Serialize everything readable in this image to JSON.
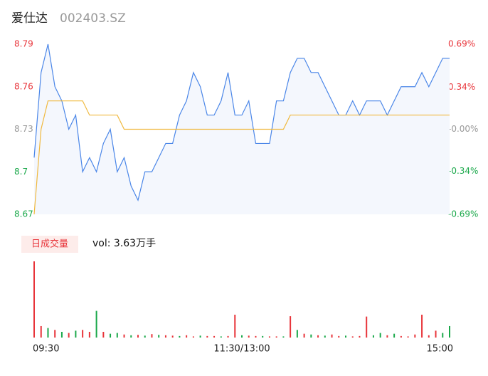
{
  "chart_data": {
    "type": "intraday",
    "title": "爱仕达",
    "subtitle": "002403.SZ",
    "volume_label": "日成交量",
    "volume_text": "vol: 3.63万手",
    "xlim": [
      0,
      240
    ],
    "xticks": [
      {
        "value": 0,
        "label": "09:30"
      },
      {
        "value": 120,
        "label": "11:30/13:00"
      },
      {
        "value": 240,
        "label": "15:00"
      }
    ],
    "ylim": [
      8.67,
      8.79
    ],
    "yticks": [
      8.67,
      8.7,
      8.73,
      8.76,
      8.79
    ],
    "y2lim": [
      -0.69,
      0.69
    ],
    "y2ticks": [
      {
        "value": -0.69,
        "label": "-0.69%"
      },
      {
        "value": -0.34,
        "label": "-0.34%"
      },
      {
        "value": 0,
        "label": "-0.00%"
      },
      {
        "value": 0.34,
        "label": "0.34%"
      },
      {
        "value": 0.69,
        "label": "0.69%"
      }
    ],
    "x": [
      0,
      4,
      8,
      12,
      16,
      20,
      24,
      28,
      32,
      36,
      40,
      44,
      48,
      52,
      56,
      60,
      64,
      68,
      72,
      76,
      80,
      84,
      88,
      92,
      96,
      100,
      104,
      108,
      112,
      116,
      120,
      124,
      128,
      132,
      136,
      140,
      144,
      148,
      152,
      156,
      160,
      164,
      168,
      172,
      176,
      180,
      184,
      188,
      192,
      196,
      200,
      204,
      208,
      212,
      216,
      220,
      224,
      228,
      232,
      236,
      240
    ],
    "series": [
      {
        "color": "#4a86e8",
        "values": [
          8.71,
          8.77,
          8.79,
          8.76,
          8.75,
          8.73,
          8.74,
          8.7,
          8.71,
          8.7,
          8.72,
          8.73,
          8.7,
          8.71,
          8.69,
          8.68,
          8.7,
          8.7,
          8.71,
          8.72,
          8.72,
          8.74,
          8.75,
          8.77,
          8.76,
          8.74,
          8.74,
          8.75,
          8.77,
          8.74,
          8.74,
          8.75,
          8.72,
          8.72,
          8.72,
          8.75,
          8.75,
          8.77,
          8.78,
          8.78,
          8.77,
          8.77,
          8.76,
          8.75,
          8.74,
          8.74,
          8.75,
          8.74,
          8.75,
          8.75,
          8.75,
          8.74,
          8.75,
          8.76,
          8.76,
          8.76,
          8.77,
          8.76,
          8.77,
          8.78,
          8.78
        ]
      },
      {
        "color": "#f0b93e",
        "values": [
          8.67,
          8.73,
          8.75,
          8.75,
          8.75,
          8.75,
          8.75,
          8.75,
          8.74,
          8.74,
          8.74,
          8.74,
          8.74,
          8.73,
          8.73,
          8.73,
          8.73,
          8.73,
          8.73,
          8.73,
          8.73,
          8.73,
          8.73,
          8.73,
          8.73,
          8.73,
          8.73,
          8.73,
          8.73,
          8.73,
          8.73,
          8.73,
          8.73,
          8.73,
          8.73,
          8.73,
          8.73,
          8.74,
          8.74,
          8.74,
          8.74,
          8.74,
          8.74,
          8.74,
          8.74,
          8.74,
          8.74,
          8.74,
          8.74,
          8.74,
          8.74,
          8.74,
          8.74,
          8.74,
          8.74,
          8.74,
          8.74,
          8.74,
          8.74,
          8.74,
          8.74
        ]
      }
    ],
    "volume_lim": [
      0,
      2000
    ],
    "volume": [
      2000,
      300,
      250,
      200,
      150,
      120,
      180,
      200,
      150,
      700,
      150,
      100,
      120,
      80,
      60,
      70,
      50,
      90,
      70,
      60,
      50,
      40,
      60,
      30,
      50,
      40,
      40,
      30,
      40,
      600,
      60,
      50,
      40,
      40,
      30,
      30,
      30,
      560,
      200,
      100,
      80,
      60,
      50,
      80,
      40,
      50,
      30,
      40,
      550,
      60,
      120,
      60,
      100,
      40,
      30,
      80,
      600,
      60,
      180,
      120,
      300
    ],
    "volume_colors": [
      "#e8343a",
      "#e8343a",
      "#1aa84a",
      "#e8343a",
      "#1aa84a",
      "#e8343a",
      "#1aa84a",
      "#e8343a",
      "#e8343a",
      "#1aa84a",
      "#e8343a",
      "#1aa84a",
      "#1aa84a",
      "#e8343a",
      "#1aa84a",
      "#e8343a",
      "#1aa84a",
      "#e8343a",
      "#1aa84a",
      "#e8343a",
      "#e8343a",
      "#1aa84a",
      "#e8343a",
      "#e8343a",
      "#1aa84a",
      "#e8343a",
      "#e8343a",
      "#1aa84a",
      "#e8343a",
      "#e8343a",
      "#1aa84a",
      "#e8343a",
      "#e8343a",
      "#1aa84a",
      "#e8343a",
      "#e8343a",
      "#1aa84a",
      "#e8343a",
      "#1aa84a",
      "#e8343a",
      "#1aa84a",
      "#e8343a",
      "#1aa84a",
      "#e8343a",
      "#e8343a",
      "#1aa84a",
      "#e8343a",
      "#e8343a",
      "#e8343a",
      "#1aa84a",
      "#1aa84a",
      "#e8343a",
      "#1aa84a",
      "#e8343a",
      "#e8343a",
      "#e8343a",
      "#e8343a",
      "#e8343a",
      "#e8343a",
      "#1aa84a",
      "#1aa84a"
    ]
  }
}
